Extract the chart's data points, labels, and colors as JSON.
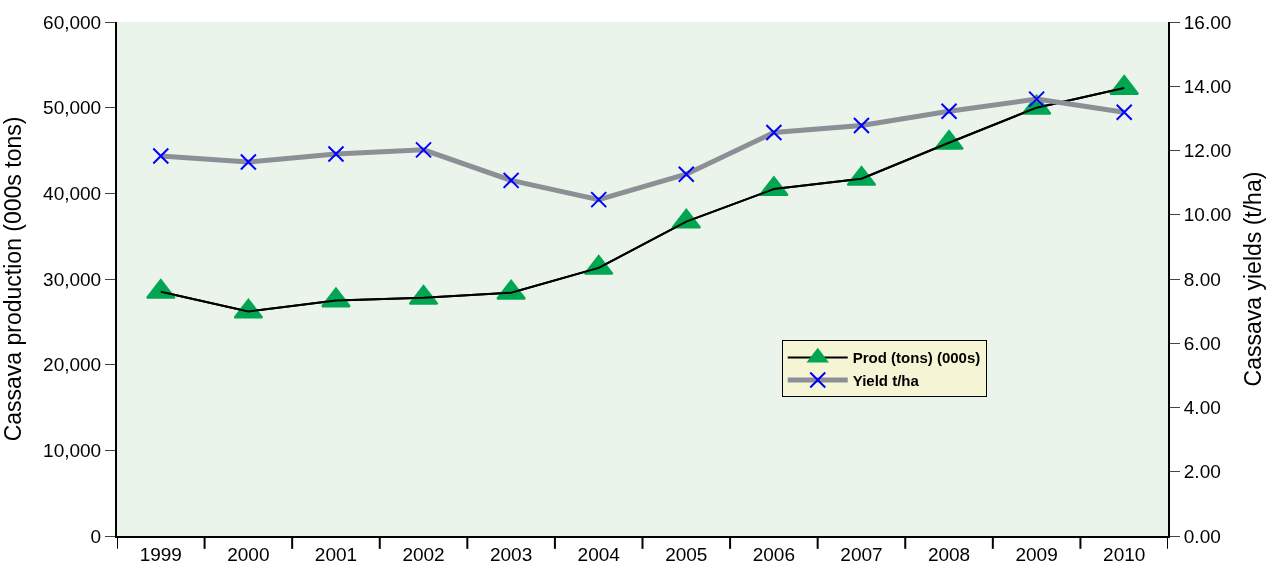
{
  "chart_data": {
    "type": "line",
    "ylabel": "Cassava production (000s tons)",
    "y2label": "Cassava yields (t/ha)",
    "categories": [
      "1999",
      "2000",
      "2001",
      "2002",
      "2003",
      "2004",
      "2005",
      "2006",
      "2007",
      "2008",
      "2009",
      "2010"
    ],
    "series": [
      {
        "name": "Prod (tons) (000s)",
        "color": "#00a651",
        "marker": "triangle",
        "values": [
          28500,
          26200,
          27500,
          27800,
          28400,
          31300,
          36700,
          40500,
          41700,
          45900,
          50000,
          52300
        ]
      },
      {
        "name": "Yield t/ha",
        "color": "#0000ff",
        "marker": "cross",
        "axis": "y2",
        "values": [
          11.83,
          11.64,
          11.89,
          12.02,
          11.07,
          10.47,
          11.26,
          12.56,
          12.78,
          13.22,
          13.6,
          13.19
        ]
      }
    ],
    "ylim": [
      0,
      60000
    ],
    "yticks": [
      0,
      {
        "value": 10000,
        "label": "10,000"
      },
      {
        "value": 20000,
        "label": "20,000"
      },
      {
        "value": 30000,
        "label": "30,000"
      },
      {
        "value": 40000,
        "label": "40,000"
      },
      {
        "value": 50000,
        "label": "50,000"
      },
      {
        "value": 60000,
        "label": "60,000"
      }
    ],
    "y2lim": [
      0,
      16
    ],
    "y2ticks": [
      {
        "value": 0,
        "label": "0.00"
      },
      {
        "value": 2,
        "label": "2.00"
      },
      {
        "value": 4,
        "label": "4.00"
      },
      {
        "value": 6,
        "label": "6.00"
      },
      {
        "value": 8,
        "label": "8.00"
      },
      {
        "value": 10,
        "label": "10.00"
      },
      {
        "value": 12,
        "label": "12.00"
      },
      {
        "value": 14,
        "label": "14.00"
      },
      {
        "value": 16,
        "label": "16.00"
      }
    ],
    "grid": false,
    "legend": "right"
  }
}
